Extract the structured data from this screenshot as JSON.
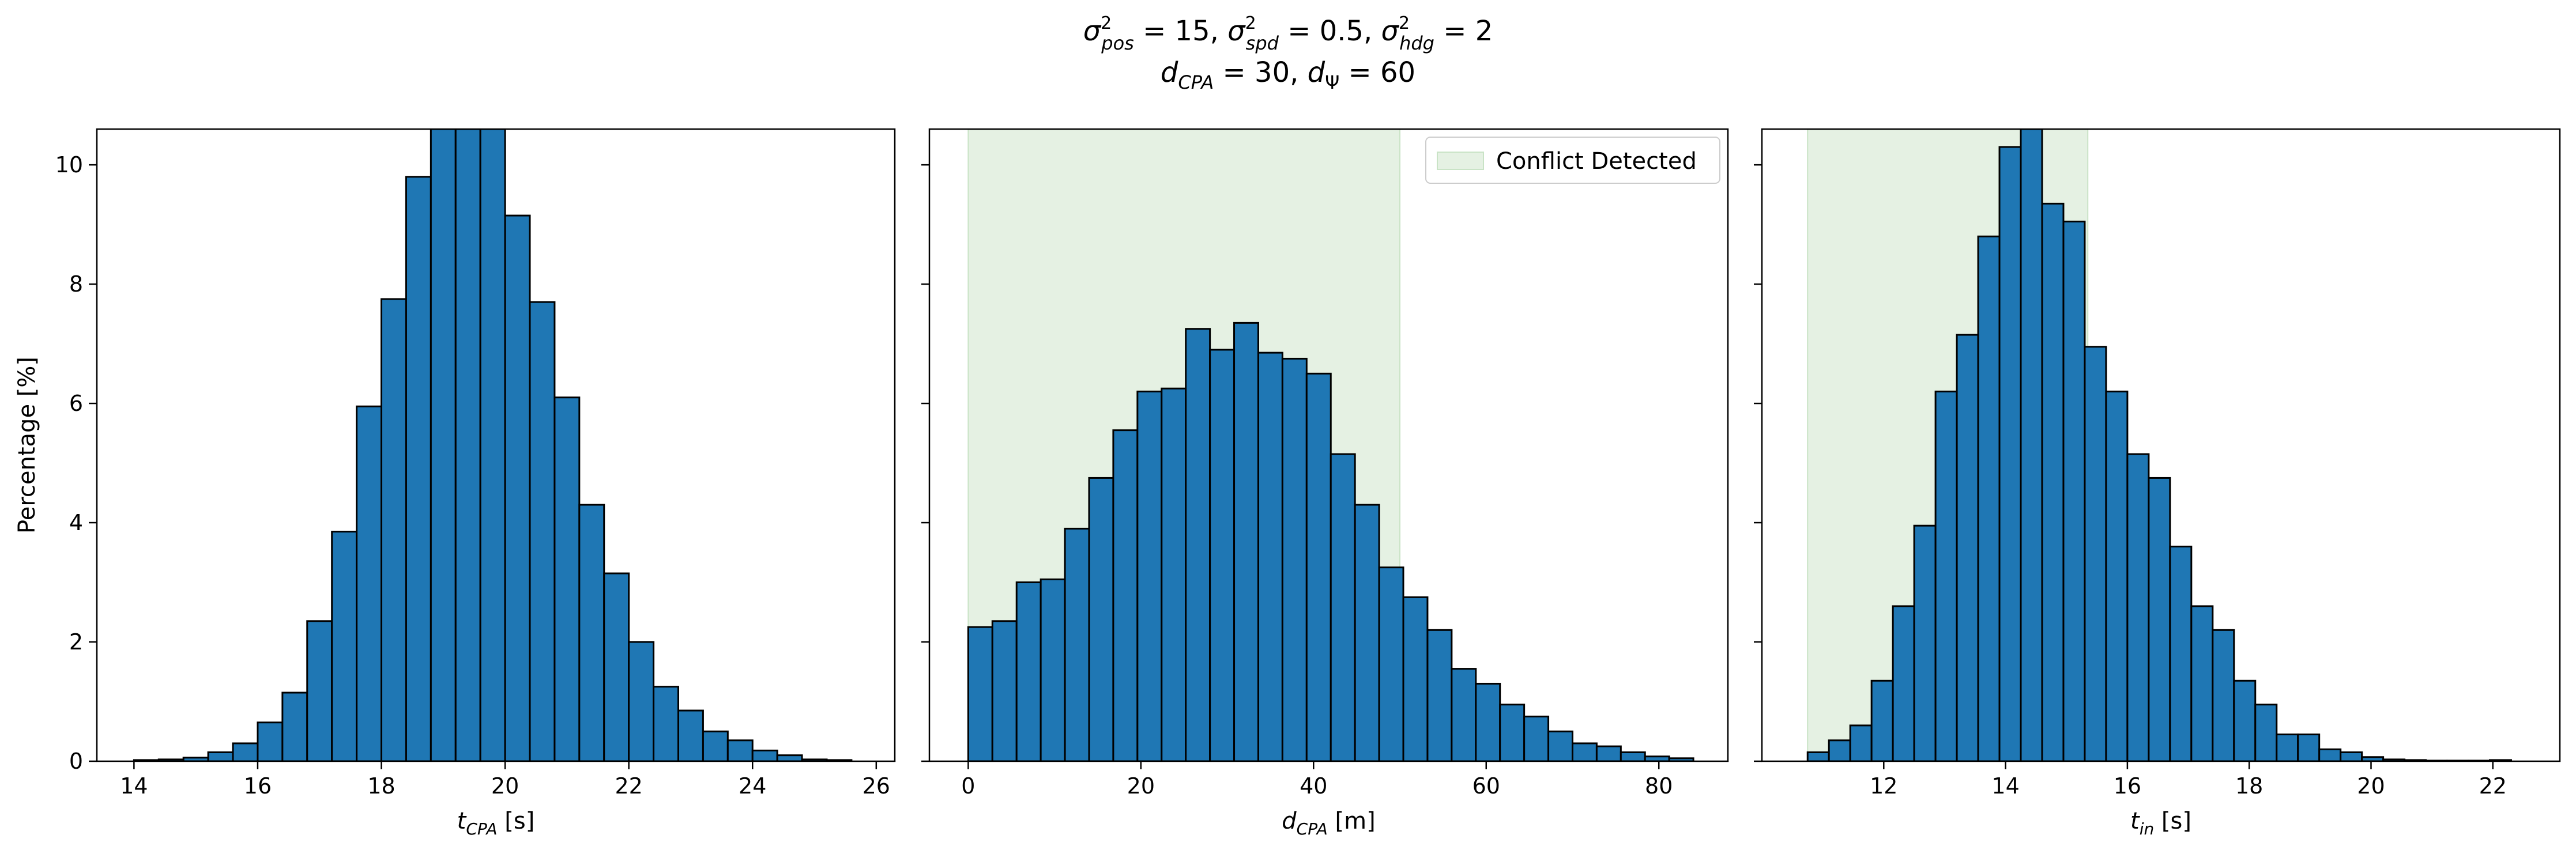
{
  "figure": {
    "title_line1": "σ²pos = 15, σ²spd = 0.5, σ²hdg = 2",
    "title_line2": "dCPA = 30, dΨ = 60"
  },
  "chart_data": [
    {
      "type": "bar",
      "name": "tcpa",
      "xlabel": "tCPA [s]",
      "ylabel": "Percentage [%]",
      "xlim": [
        13.4,
        26.3
      ],
      "ylim": [
        0,
        10.6
      ],
      "xticks": [
        14,
        16,
        18,
        20,
        22,
        24,
        26
      ],
      "yticks": [
        0,
        2,
        4,
        6,
        8,
        10
      ],
      "bin_edges": [
        14.0,
        14.4,
        14.8,
        15.2,
        15.6,
        16.0,
        16.4,
        16.8,
        17.2,
        17.6,
        18.0,
        18.4,
        18.8,
        19.2,
        19.6,
        20.0,
        20.4,
        20.8,
        21.2,
        21.6,
        22.0,
        22.4,
        22.8,
        23.2,
        23.6,
        24.0,
        24.4,
        24.8,
        25.2,
        25.6
      ],
      "values": [
        0.02,
        0.03,
        0.06,
        0.15,
        0.3,
        0.65,
        1.15,
        2.35,
        3.85,
        5.95,
        7.75,
        9.8,
        10.6,
        10.6,
        10.6,
        9.15,
        7.7,
        6.1,
        4.3,
        3.15,
        2.0,
        1.25,
        0.85,
        0.5,
        0.35,
        0.18,
        0.1,
        0.03,
        0.02
      ],
      "shaded_region": null,
      "legend": null
    },
    {
      "type": "bar",
      "name": "dcpa",
      "xlabel": "dCPA [m]",
      "ylabel": "",
      "xlim": [
        -4.5,
        88
      ],
      "ylim": [
        0,
        10.6
      ],
      "xticks": [
        0,
        20,
        40,
        60,
        80
      ],
      "yticks": [
        0,
        2,
        4,
        6,
        8,
        10
      ],
      "bin_edges": [
        0.0,
        2.8,
        5.6,
        8.4,
        11.2,
        14.0,
        16.8,
        19.6,
        22.4,
        25.2,
        28.0,
        30.8,
        33.6,
        36.4,
        39.2,
        42.0,
        44.8,
        47.6,
        50.4,
        53.2,
        56.0,
        58.8,
        61.6,
        64.4,
        67.2,
        70.0,
        72.8,
        75.6,
        78.4,
        81.2,
        84.0
      ],
      "values": [
        2.25,
        2.35,
        3.0,
        3.05,
        3.9,
        4.75,
        5.55,
        6.2,
        6.25,
        7.25,
        6.9,
        7.35,
        6.85,
        6.75,
        6.5,
        5.15,
        4.3,
        3.25,
        2.75,
        2.2,
        1.55,
        1.3,
        0.95,
        0.75,
        0.5,
        0.3,
        0.25,
        0.15,
        0.08,
        0.05
      ],
      "shaded_region": {
        "from": 0,
        "to": 50
      },
      "legend": {
        "label": "Conflict Detected",
        "placement": "top-right"
      }
    },
    {
      "type": "bar",
      "name": "tin",
      "xlabel": "tin [s]",
      "ylabel": "",
      "xlim": [
        10.0,
        23.1
      ],
      "ylim": [
        0,
        10.6
      ],
      "xticks": [
        12,
        14,
        16,
        18,
        20,
        22
      ],
      "yticks": [
        0,
        2,
        4,
        6,
        8,
        10
      ],
      "bin_edges": [
        10.75,
        11.1,
        11.45,
        11.8,
        12.15,
        12.5,
        12.85,
        13.2,
        13.55,
        13.9,
        14.25,
        14.6,
        14.95,
        15.3,
        15.65,
        16.0,
        16.35,
        16.7,
        17.05,
        17.4,
        17.75,
        18.1,
        18.45,
        18.8,
        19.15,
        19.5,
        19.85,
        20.2,
        20.55,
        20.9,
        21.25,
        21.6,
        21.95,
        22.3
      ],
      "values": [
        0.15,
        0.35,
        0.6,
        1.35,
        2.6,
        3.95,
        6.2,
        7.15,
        8.8,
        10.3,
        10.6,
        9.35,
        9.05,
        6.95,
        6.2,
        5.15,
        4.75,
        3.6,
        2.6,
        2.2,
        1.35,
        0.95,
        0.45,
        0.45,
        0.2,
        0.15,
        0.07,
        0.03,
        0.02,
        0.01,
        0.01,
        0.01,
        0.02
      ],
      "shaded_region": {
        "from": 10.75,
        "to": 15.35
      },
      "legend": null
    }
  ],
  "colors": {
    "bar_fill": "#1f77b4",
    "bar_edge": "#000000",
    "shade": "#e5f1e3",
    "shade_edge": "#c9e3c6"
  }
}
